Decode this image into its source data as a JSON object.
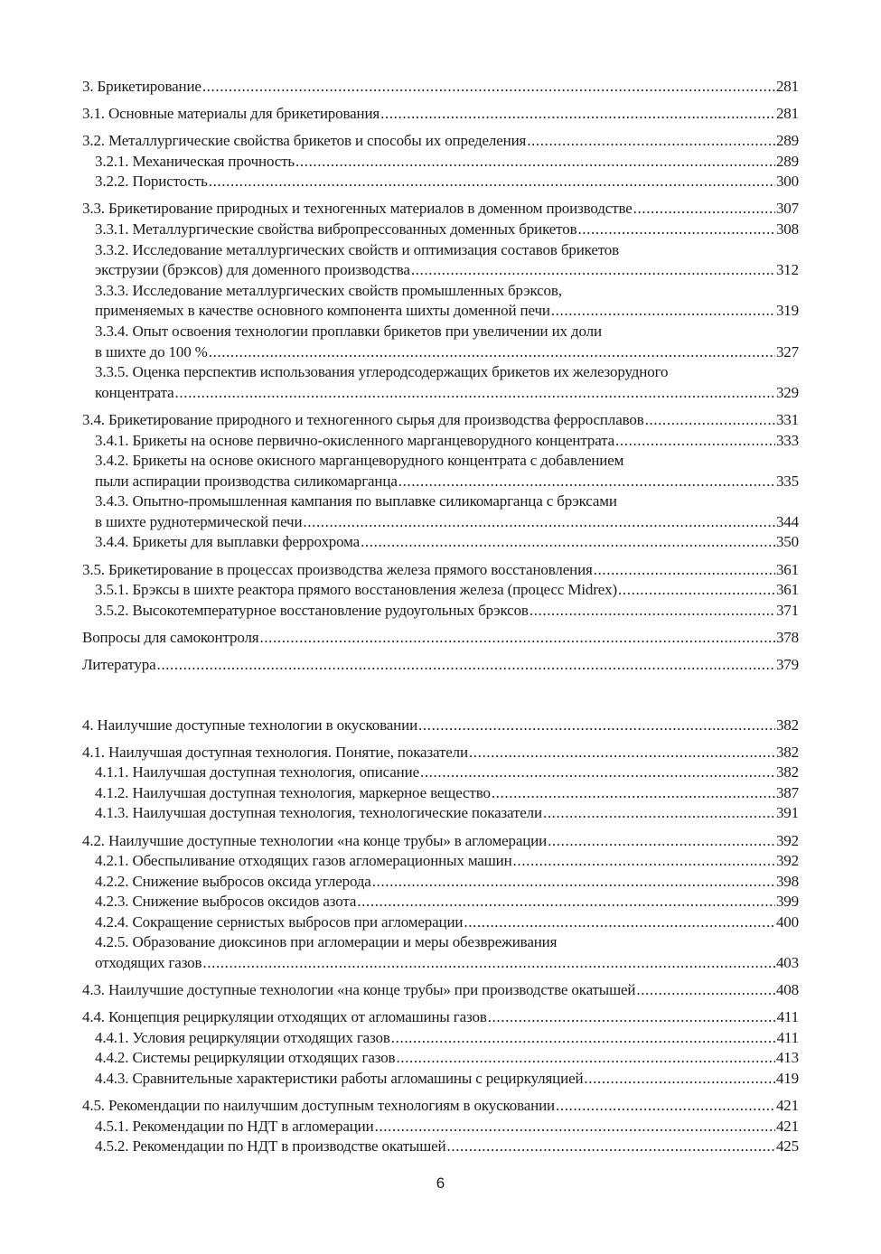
{
  "toc": [
    {
      "entries": [
        {
          "level": 1,
          "lines": [
            "3. Брикетирование"
          ],
          "page": "281"
        }
      ]
    },
    {
      "entries": [
        {
          "level": 1,
          "lines": [
            "3.1. Основные материалы для брикетирования"
          ],
          "page": "281"
        }
      ]
    },
    {
      "entries": [
        {
          "level": 1,
          "lines": [
            "3.2. Металлургические свойства брикетов и способы их определения"
          ],
          "page": "289"
        },
        {
          "level": 2,
          "lines": [
            "3.2.1. Механическая прочность"
          ],
          "page": "289"
        },
        {
          "level": 2,
          "lines": [
            "3.2.2. Пористость"
          ],
          "page": "300"
        }
      ]
    },
    {
      "entries": [
        {
          "level": 1,
          "lines": [
            "3.3. Брикетирование природных и техногенных материалов в доменном производстве"
          ],
          "page": "307"
        },
        {
          "level": 2,
          "lines": [
            "3.3.1. Металлургические свойства вибропрессованных доменных брикетов"
          ],
          "page": "308"
        },
        {
          "level": 2,
          "lines": [
            "3.3.2. Исследование металлургических свойств и оптимизация составов брикетов",
            "экструзии (брэксов) для доменного производства"
          ],
          "page": "312"
        },
        {
          "level": 2,
          "lines": [
            "3.3.3. Исследование металлургических свойств промышленных брэксов,",
            "применяемых в качестве основного компонента шихты доменной печи"
          ],
          "page": "319"
        },
        {
          "level": 2,
          "lines": [
            "3.3.4. Опыт освоения технологии проплавки брикетов при увеличении их доли",
            "в шихте до 100 %"
          ],
          "page": "327"
        },
        {
          "level": 2,
          "lines": [
            "3.3.5. Оценка перспектив использования углеродсодержащих брикетов их железорудного",
            "концентрата"
          ],
          "page": "329"
        }
      ]
    },
    {
      "entries": [
        {
          "level": 1,
          "lines": [
            "3.4. Брикетирование природного и техногенного сырья для производства ферросплавов"
          ],
          "page": "331"
        },
        {
          "level": 2,
          "lines": [
            "3.4.1. Брикеты на основе первично-окисленного марганцеворудного концентрата"
          ],
          "page": "333"
        },
        {
          "level": 2,
          "lines": [
            "3.4.2. Брикеты на основе окисного марганцеворудного концентрата с добавлением",
            "пыли аспирации производства силикомарганца"
          ],
          "page": "335"
        },
        {
          "level": 2,
          "lines": [
            "3.4.3. Опытно-промышленная кампания по выплавке силикомарганца с брэксами",
            "в шихте руднотермической печи"
          ],
          "page": "344"
        },
        {
          "level": 2,
          "lines": [
            "3.4.4. Брикеты для выплавки феррохрома"
          ],
          "page": "350"
        }
      ]
    },
    {
      "entries": [
        {
          "level": 1,
          "lines": [
            "3.5. Брикетирование в процессах производства железа прямого восстановления"
          ],
          "page": "361"
        },
        {
          "level": 2,
          "lines": [
            "3.5.1. Брэксы в шихте реактора прямого восстановления железа (процесс Midrex)"
          ],
          "page": "361"
        },
        {
          "level": 2,
          "lines": [
            "3.5.2. Высокотемпературное восстановление рудоугольных брэксов"
          ],
          "page": "371"
        }
      ]
    },
    {
      "entries": [
        {
          "level": 1,
          "lines": [
            "Вопросы для самоконтроля"
          ],
          "page": "378"
        }
      ]
    },
    {
      "entries": [
        {
          "level": 1,
          "lines": [
            "Литература"
          ],
          "page": "379"
        }
      ]
    },
    {
      "separator": true,
      "entries": [
        {
          "level": 1,
          "lines": [
            "4. Наилучшие доступные технологии в окусковании"
          ],
          "page": "382"
        }
      ]
    },
    {
      "entries": [
        {
          "level": 1,
          "lines": [
            "4.1. Наилучшая доступная технология. Понятие, показатели"
          ],
          "page": "382"
        },
        {
          "level": 2,
          "lines": [
            "4.1.1. Наилучшая доступная технология, описание"
          ],
          "page": "382"
        },
        {
          "level": 2,
          "lines": [
            "4.1.2. Наилучшая доступная технология, маркерное вещество"
          ],
          "page": "387"
        },
        {
          "level": 2,
          "lines": [
            "4.1.3. Наилучшая доступная технология, технологические показатели"
          ],
          "page": "391"
        }
      ]
    },
    {
      "entries": [
        {
          "level": 1,
          "lines": [
            "4.2. Наилучшие доступные технологии «на конце трубы» в агломерации"
          ],
          "page": "392"
        },
        {
          "level": 2,
          "lines": [
            "4.2.1. Обеспыливание отходящих газов агломерационных машин"
          ],
          "page": "392"
        },
        {
          "level": 2,
          "lines": [
            "4.2.2. Снижение выбросов оксида углерода"
          ],
          "page": "398"
        },
        {
          "level": 2,
          "lines": [
            "4.2.3. Снижение выбросов оксидов азота"
          ],
          "page": "399"
        },
        {
          "level": 2,
          "lines": [
            "4.2.4. Сокращение сернистых выбросов при агломерации"
          ],
          "page": "400"
        },
        {
          "level": 2,
          "lines": [
            "4.2.5. Образование диоксинов при агломерации и меры обезвреживания",
            "отходящих газов"
          ],
          "page": "403"
        }
      ]
    },
    {
      "entries": [
        {
          "level": 1,
          "lines": [
            "4.3. Наилучшие доступные технологии «на конце трубы» при производстве окатышей"
          ],
          "page": "408"
        }
      ]
    },
    {
      "entries": [
        {
          "level": 1,
          "lines": [
            "4.4. Концепция рециркуляции отходящих от агломашины газов"
          ],
          "page": "411"
        },
        {
          "level": 2,
          "lines": [
            "4.4.1. Условия рециркуляции отходящих газов"
          ],
          "page": "411"
        },
        {
          "level": 2,
          "lines": [
            "4.4.2. Системы рециркуляции отходящих газов"
          ],
          "page": "413"
        },
        {
          "level": 2,
          "lines": [
            "4.4.3. Сравнительные характеристики работы агломашины с рециркуляцией"
          ],
          "page": "419"
        }
      ]
    },
    {
      "entries": [
        {
          "level": 1,
          "lines": [
            "4.5. Рекомендации по наилучшим доступным технологиям в окусковании"
          ],
          "page": "421"
        },
        {
          "level": 2,
          "lines": [
            "4.5.1. Рекомендации по НДТ в агломерации"
          ],
          "page": "421"
        },
        {
          "level": 2,
          "lines": [
            "4.5.2. Рекомендации по НДТ в производстве окатышей"
          ],
          "page": "425"
        }
      ]
    }
  ],
  "page_number": "6"
}
